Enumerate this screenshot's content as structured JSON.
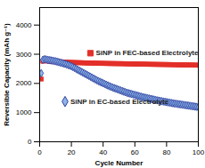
{
  "chart_data": {
    "type": "scatter",
    "x_label": "Cycle Number",
    "y_label": "Reversible Capacity (mAh g⁻¹)",
    "xlim": [
      0,
      100
    ],
    "xticks": [
      0,
      20,
      40,
      60,
      80,
      100
    ],
    "ylim": [
      0,
      4600
    ],
    "yticks": [
      0,
      1000,
      2000,
      3000,
      4000
    ],
    "legend": "inside",
    "x": [
      1,
      2,
      3,
      4,
      5,
      6,
      7,
      8,
      9,
      10,
      11,
      12,
      13,
      14,
      15,
      16,
      17,
      18,
      19,
      20,
      21,
      22,
      23,
      24,
      25,
      26,
      27,
      28,
      29,
      30,
      31,
      32,
      33,
      34,
      35,
      36,
      37,
      38,
      39,
      40,
      41,
      42,
      43,
      44,
      45,
      46,
      47,
      48,
      49,
      50,
      51,
      52,
      53,
      54,
      55,
      56,
      57,
      58,
      59,
      60,
      61,
      62,
      63,
      64,
      65,
      66,
      67,
      68,
      69,
      70,
      71,
      72,
      73,
      74,
      75,
      76,
      77,
      78,
      79,
      80,
      81,
      82,
      83,
      84,
      85,
      86,
      87,
      88,
      89,
      90,
      91,
      92,
      93,
      94,
      95,
      96,
      97,
      98,
      99,
      100
    ],
    "series": [
      {
        "name": "SiNP in FEC-based Electrolyte",
        "color": "#e3302a",
        "marker": "square",
        "values": [
          2150,
          2760,
          2790,
          2780,
          2770,
          2760,
          2760,
          2750,
          2750,
          2745,
          2740,
          2740,
          2735,
          2735,
          2730,
          2730,
          2725,
          2725,
          2720,
          2720,
          2718,
          2716,
          2714,
          2712,
          2710,
          2708,
          2706,
          2704,
          2702,
          2700,
          2700,
          2698,
          2697,
          2695,
          2694,
          2693,
          2691,
          2690,
          2689,
          2688,
          2687,
          2686,
          2684,
          2683,
          2682,
          2681,
          2680,
          2679,
          2678,
          2677,
          2676,
          2675,
          2674,
          2672,
          2671,
          2670,
          2669,
          2668,
          2667,
          2666,
          2665,
          2664,
          2663,
          2662,
          2661,
          2660,
          2659,
          2658,
          2657,
          2656,
          2655,
          2654,
          2653,
          2652,
          2651,
          2650,
          2649,
          2648,
          2647,
          2646,
          2645,
          2644,
          2643,
          2642,
          2641,
          2640,
          2639,
          2638,
          2637,
          2636,
          2635,
          2634,
          2633,
          2632,
          2631,
          2630,
          2629,
          2628,
          2627,
          2626
        ]
      },
      {
        "name": "SiNP in EC-based Electrolyte",
        "color": "#2b3f9e",
        "marker": "diamond",
        "values": [
          2350,
          2810,
          2830,
          2820,
          2810,
          2800,
          2790,
          2780,
          2770,
          2760,
          2745,
          2730,
          2715,
          2700,
          2685,
          2670,
          2650,
          2630,
          2610,
          2590,
          2560,
          2530,
          2500,
          2470,
          2440,
          2410,
          2380,
          2350,
          2320,
          2290,
          2260,
          2230,
          2200,
          2170,
          2140,
          2110,
          2080,
          2055,
          2030,
          2005,
          1980,
          1955,
          1930,
          1905,
          1880,
          1860,
          1840,
          1820,
          1800,
          1780,
          1760,
          1740,
          1720,
          1700,
          1680,
          1665,
          1650,
          1635,
          1620,
          1605,
          1590,
          1575,
          1560,
          1545,
          1530,
          1518,
          1506,
          1494,
          1482,
          1470,
          1458,
          1446,
          1434,
          1422,
          1410,
          1400,
          1390,
          1380,
          1370,
          1360,
          1350,
          1340,
          1330,
          1320,
          1310,
          1302,
          1294,
          1286,
          1278,
          1270,
          1262,
          1254,
          1246,
          1238,
          1230,
          1222,
          1214,
          1206,
          1198,
          1190
        ]
      }
    ]
  }
}
